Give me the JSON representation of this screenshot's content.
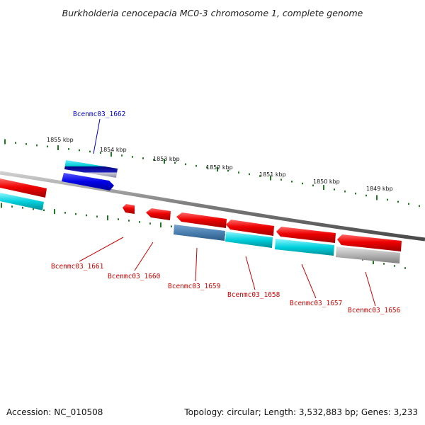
{
  "title": "Burkholderia cenocepacia MC0-3 chromosome 1, complete genome",
  "footer": {
    "accession": "Accession: NC_010508",
    "summary": "Topology: circular; Length: 3,532,883 bp; Genes: 3,233"
  },
  "kbp_labels": [
    "1855 kbp",
    "1854 kbp",
    "1853 kbp",
    "1852 kbp",
    "1851 kbp",
    "1850 kbp",
    "1849 kbp"
  ],
  "gene_labels": {
    "top": "Bcenmc03_1662",
    "bottom": [
      "Bcenmc03_1661",
      "Bcenmc03_1660",
      "Bcenmc03_1659",
      "Bcenmc03_1658",
      "Bcenmc03_1657",
      "Bcenmc03_1656"
    ]
  },
  "colors": {
    "forward_gene": "#0000e6",
    "reverse_gene": "#ee0000",
    "cyan_track": "#00c8d2",
    "steel_track": "#4a7fb0",
    "gray_track": "#b4b4b4",
    "backbone": "#7a7a7a",
    "ticks": "#1f7a1f",
    "top_label": "#0000cc",
    "bottom_label": "#cc0000"
  }
}
